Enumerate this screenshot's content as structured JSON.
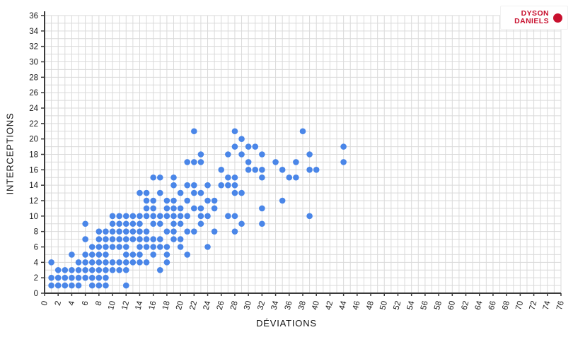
{
  "chart_data": {
    "type": "scatter",
    "title": "",
    "xlabel": "DÉVIATIONS",
    "ylabel": "INTERCEPTIONS",
    "xlim": [
      0,
      76
    ],
    "ylim": [
      0,
      36
    ],
    "x_tick_step": 2,
    "y_tick_step": 2,
    "grid_step": 1,
    "grid": true,
    "legend": "none",
    "point_color": "#4a86e8",
    "grid_color": "#dadada",
    "axis_color": "#3a3a3a",
    "tick_label_color": "#1a1a1a",
    "points": [
      [
        1,
        1
      ],
      [
        2,
        1
      ],
      [
        3,
        1
      ],
      [
        4,
        1
      ],
      [
        5,
        1
      ],
      [
        7,
        1
      ],
      [
        8,
        1
      ],
      [
        9,
        1
      ],
      [
        12,
        1
      ],
      [
        1,
        2
      ],
      [
        2,
        2
      ],
      [
        3,
        2
      ],
      [
        4,
        2
      ],
      [
        5,
        2
      ],
      [
        6,
        2
      ],
      [
        7,
        2
      ],
      [
        8,
        2
      ],
      [
        9,
        2
      ],
      [
        2,
        3
      ],
      [
        3,
        3
      ],
      [
        4,
        3
      ],
      [
        5,
        3
      ],
      [
        6,
        3
      ],
      [
        7,
        3
      ],
      [
        8,
        3
      ],
      [
        9,
        3
      ],
      [
        10,
        3
      ],
      [
        11,
        3
      ],
      [
        12,
        3
      ],
      [
        17,
        3
      ],
      [
        1,
        4
      ],
      [
        5,
        4
      ],
      [
        6,
        4
      ],
      [
        7,
        4
      ],
      [
        8,
        4
      ],
      [
        9,
        4
      ],
      [
        10,
        4
      ],
      [
        11,
        4
      ],
      [
        12,
        4
      ],
      [
        13,
        4
      ],
      [
        14,
        4
      ],
      [
        15,
        4
      ],
      [
        18,
        4
      ],
      [
        4,
        5
      ],
      [
        6,
        5
      ],
      [
        7,
        5
      ],
      [
        8,
        5
      ],
      [
        9,
        5
      ],
      [
        12,
        5
      ],
      [
        13,
        5
      ],
      [
        14,
        5
      ],
      [
        16,
        5
      ],
      [
        18,
        5
      ],
      [
        21,
        5
      ],
      [
        7,
        6
      ],
      [
        8,
        6
      ],
      [
        9,
        6
      ],
      [
        10,
        6
      ],
      [
        11,
        6
      ],
      [
        12,
        6
      ],
      [
        14,
        6
      ],
      [
        15,
        6
      ],
      [
        16,
        6
      ],
      [
        17,
        6
      ],
      [
        18,
        6
      ],
      [
        20,
        6
      ],
      [
        24,
        6
      ],
      [
        6,
        7
      ],
      [
        8,
        7
      ],
      [
        9,
        7
      ],
      [
        10,
        7
      ],
      [
        11,
        7
      ],
      [
        12,
        7
      ],
      [
        13,
        7
      ],
      [
        14,
        7
      ],
      [
        15,
        7
      ],
      [
        16,
        7
      ],
      [
        17,
        7
      ],
      [
        19,
        7
      ],
      [
        20,
        7
      ],
      [
        8,
        8
      ],
      [
        9,
        8
      ],
      [
        10,
        8
      ],
      [
        11,
        8
      ],
      [
        12,
        8
      ],
      [
        13,
        8
      ],
      [
        14,
        8
      ],
      [
        15,
        8
      ],
      [
        18,
        8
      ],
      [
        19,
        8
      ],
      [
        21,
        8
      ],
      [
        22,
        8
      ],
      [
        25,
        8
      ],
      [
        28,
        8
      ],
      [
        6,
        9
      ],
      [
        10,
        9
      ],
      [
        11,
        9
      ],
      [
        12,
        9
      ],
      [
        13,
        9
      ],
      [
        14,
        9
      ],
      [
        16,
        9
      ],
      [
        17,
        9
      ],
      [
        19,
        9
      ],
      [
        20,
        9
      ],
      [
        23,
        9
      ],
      [
        29,
        9
      ],
      [
        32,
        9
      ],
      [
        10,
        10
      ],
      [
        11,
        10
      ],
      [
        12,
        10
      ],
      [
        13,
        10
      ],
      [
        14,
        10
      ],
      [
        15,
        10
      ],
      [
        16,
        10
      ],
      [
        17,
        10
      ],
      [
        18,
        10
      ],
      [
        19,
        10
      ],
      [
        20,
        10
      ],
      [
        21,
        10
      ],
      [
        23,
        10
      ],
      [
        24,
        10
      ],
      [
        27,
        10
      ],
      [
        28,
        10
      ],
      [
        39,
        10
      ],
      [
        15,
        11
      ],
      [
        16,
        11
      ],
      [
        18,
        11
      ],
      [
        19,
        11
      ],
      [
        20,
        11
      ],
      [
        22,
        11
      ],
      [
        23,
        11
      ],
      [
        25,
        11
      ],
      [
        32,
        11
      ],
      [
        15,
        12
      ],
      [
        16,
        12
      ],
      [
        18,
        12
      ],
      [
        19,
        12
      ],
      [
        21,
        12
      ],
      [
        24,
        12
      ],
      [
        25,
        12
      ],
      [
        35,
        12
      ],
      [
        14,
        13
      ],
      [
        15,
        13
      ],
      [
        17,
        13
      ],
      [
        20,
        13
      ],
      [
        22,
        13
      ],
      [
        23,
        13
      ],
      [
        28,
        13
      ],
      [
        29,
        13
      ],
      [
        19,
        14
      ],
      [
        21,
        14
      ],
      [
        22,
        14
      ],
      [
        24,
        14
      ],
      [
        26,
        14
      ],
      [
        27,
        14
      ],
      [
        28,
        14
      ],
      [
        16,
        15
      ],
      [
        17,
        15
      ],
      [
        19,
        15
      ],
      [
        27,
        15
      ],
      [
        28,
        15
      ],
      [
        32,
        15
      ],
      [
        36,
        15
      ],
      [
        37,
        15
      ],
      [
        26,
        16
      ],
      [
        30,
        16
      ],
      [
        31,
        16
      ],
      [
        32,
        16
      ],
      [
        35,
        16
      ],
      [
        39,
        16
      ],
      [
        40,
        16
      ],
      [
        21,
        17
      ],
      [
        22,
        17
      ],
      [
        23,
        17
      ],
      [
        30,
        17
      ],
      [
        34,
        17
      ],
      [
        37,
        17
      ],
      [
        44,
        17
      ],
      [
        23,
        18
      ],
      [
        27,
        18
      ],
      [
        29,
        18
      ],
      [
        32,
        18
      ],
      [
        39,
        18
      ],
      [
        28,
        19
      ],
      [
        30,
        19
      ],
      [
        31,
        19
      ],
      [
        44,
        19
      ],
      [
        29,
        20
      ],
      [
        22,
        21
      ],
      [
        28,
        21
      ],
      [
        38,
        21
      ]
    ]
  },
  "logo": {
    "line1": "DYSON",
    "line2": "DANIELS",
    "accent_color": "#c8102e",
    "dot_icon": "filled-circle"
  }
}
